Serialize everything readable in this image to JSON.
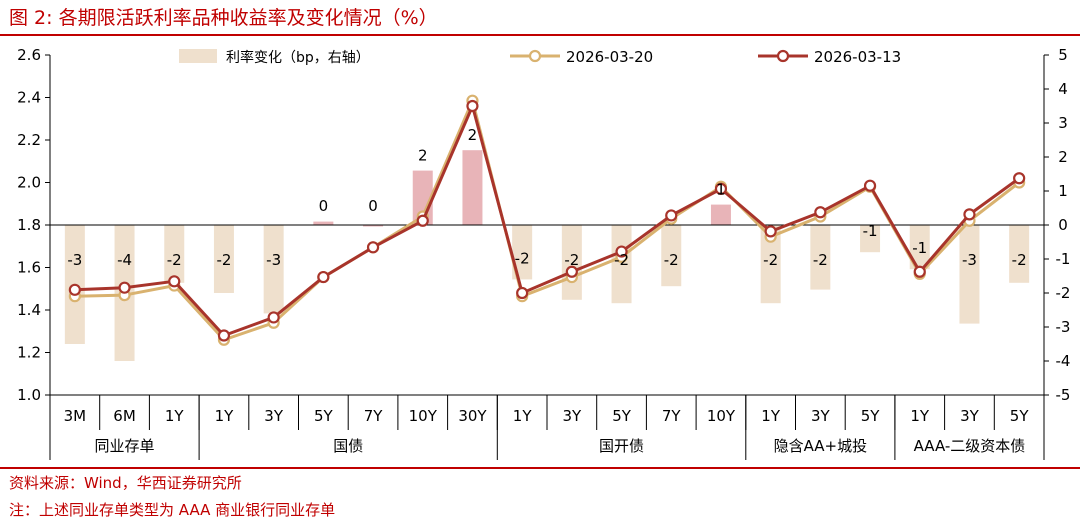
{
  "figure": {
    "title": "图 2:  各期限活跃利率品种收益率及变化情况（%）",
    "source": "资料来源：Wind，华西证券研究所",
    "note": "注：上述同业存单类型为 AAA 商业银行同业存单"
  },
  "chart_data": {
    "type": "bar+line",
    "categories": [
      "3M",
      "6M",
      "1Y",
      "1Y",
      "3Y",
      "5Y",
      "7Y",
      "10Y",
      "30Y",
      "1Y",
      "3Y",
      "5Y",
      "7Y",
      "10Y",
      "1Y",
      "3Y",
      "5Y",
      "1Y",
      "3Y",
      "5Y"
    ],
    "groups": [
      {
        "label": "同业存单",
        "count": 3
      },
      {
        "label": "国债",
        "count": 6
      },
      {
        "label": "国开债",
        "count": 5
      },
      {
        "label": "隐含AA+城投",
        "count": 3
      },
      {
        "label": "AAA-二级资本债",
        "count": 3
      }
    ],
    "y_left": {
      "min": 1.0,
      "max": 2.6,
      "ticks": [
        "1.0",
        "1.2",
        "1.4",
        "1.6",
        "1.8",
        "2.0",
        "2.2",
        "2.4",
        "2.6"
      ]
    },
    "y_right": {
      "min": -5,
      "max": 5,
      "ticks": [
        "-5",
        "-4",
        "-3",
        "-2",
        "-1",
        "0",
        "1",
        "2",
        "3",
        "4",
        "5"
      ]
    },
    "bar_series": {
      "name": "利率变化（bp，右轴）",
      "values": [
        -3.5,
        -4.0,
        -1.7,
        -2.0,
        -2.6,
        0.1,
        0.0,
        1.6,
        2.2,
        -1.6,
        -2.2,
        -2.3,
        -1.8,
        0.6,
        -2.3,
        -1.9,
        -0.8,
        -1.3,
        -2.9,
        -1.7
      ],
      "labels": [
        "-3",
        "-4",
        "-2",
        "-2",
        "-3",
        "0",
        "0",
        "2",
        "2",
        "-2",
        "-2",
        "-2",
        "-2",
        "1",
        "-2",
        "-2",
        "-1",
        "-1",
        "-3",
        "-2"
      ],
      "color_positive": "#e8b4b8",
      "color_negative": "#efe0cd"
    },
    "line_series": [
      {
        "name": "2026-03-20",
        "values": [
          1.465,
          1.47,
          1.515,
          1.26,
          1.34,
          1.555,
          1.695,
          1.84,
          2.385,
          1.465,
          1.555,
          1.65,
          1.83,
          1.98,
          1.745,
          1.84,
          1.98,
          1.57,
          1.82,
          2.0
        ],
        "color": "#d9b26f"
      },
      {
        "name": "2026-03-13",
        "values": [
          1.495,
          1.505,
          1.535,
          1.28,
          1.365,
          1.555,
          1.695,
          1.82,
          2.36,
          1.48,
          1.58,
          1.675,
          1.845,
          1.97,
          1.77,
          1.86,
          1.985,
          1.58,
          1.85,
          2.02
        ],
        "color": "#a8342b"
      }
    ]
  }
}
